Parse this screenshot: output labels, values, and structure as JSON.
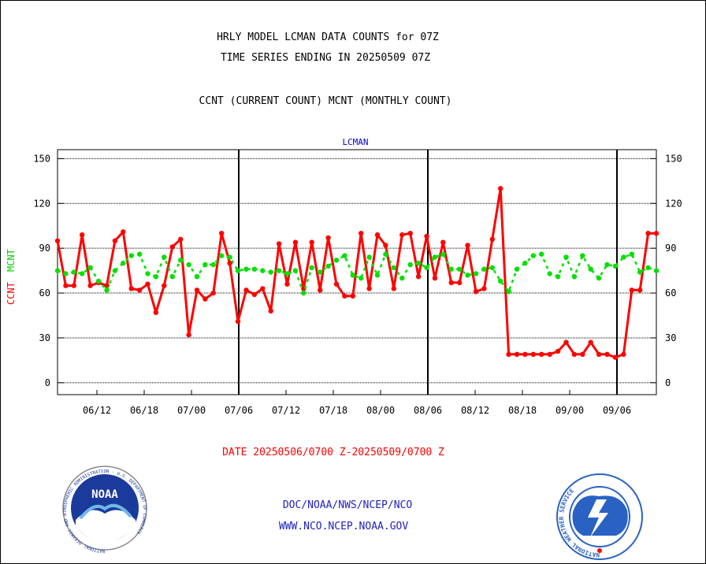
{
  "header": {
    "title_line1": "HRLY MODEL LCMAN DATA COUNTS for 07Z",
    "title_line2": "TIME SERIES ENDING IN 20250509 07Z",
    "subtitle": "CCNT (CURRENT COUNT) MCNT (MONTHLY COUNT)"
  },
  "footer": {
    "date_range": "DATE 20250506/0700 Z-20250509/0700 Z",
    "org_line": "DOC/NOAA/NWS/NCEP/NCO",
    "url_line": "WWW.NCO.NCEP.NOAA.GOV",
    "noaa_logo_text": "NOAA",
    "noaa_seal_text": "NATIONAL OCEANIC AND ATMOSPHERIC ADMINISTRATION · U.S. DEPARTMENT OF COMMERCE",
    "nws_seal_text": "NATIONAL WEATHER SERVICE"
  },
  "colors": {
    "ccnt": "#ff0000",
    "mcnt": "#00e000",
    "chart_title": "#0000cc",
    "footer_text": "#2020c0",
    "date_text": "#ff0000"
  },
  "chart_data": {
    "type": "line",
    "title": "LCMAN",
    "ylabel_ccnt": "CCNT",
    "ylabel_mcnt": "MCNT",
    "ylim": [
      -8,
      156
    ],
    "y_ticks": [
      0,
      30,
      60,
      90,
      120,
      150
    ],
    "x_range": [
      0,
      76
    ],
    "x_ticks": [
      {
        "x": 5,
        "label": "06/12"
      },
      {
        "x": 11,
        "label": "06/18"
      },
      {
        "x": 17,
        "label": "07/00"
      },
      {
        "x": 23,
        "label": "07/06"
      },
      {
        "x": 29,
        "label": "07/12"
      },
      {
        "x": 35,
        "label": "07/18"
      },
      {
        "x": 41,
        "label": "08/00"
      },
      {
        "x": 47,
        "label": "08/06"
      },
      {
        "x": 53,
        "label": "08/12"
      },
      {
        "x": 59,
        "label": "08/18"
      },
      {
        "x": 65,
        "label": "09/00"
      },
      {
        "x": 71,
        "label": "09/06"
      }
    ],
    "day_boundaries": [
      23,
      47,
      71
    ],
    "grid": true,
    "series": [
      {
        "name": "CCNT",
        "color": "#ff0000",
        "values": [
          95,
          65,
          65,
          99,
          65,
          67,
          65,
          95,
          101,
          63,
          62,
          66,
          47,
          65,
          91,
          96,
          32,
          62,
          56,
          60,
          100,
          80,
          41,
          62,
          59,
          63,
          48,
          93,
          66,
          94,
          63,
          94,
          62,
          97,
          66,
          58,
          58,
          100,
          63,
          99,
          92,
          63,
          99,
          100,
          71,
          98,
          70,
          94,
          67,
          67,
          92,
          61,
          63,
          96,
          130,
          19,
          19,
          19,
          19,
          19,
          19,
          21,
          27,
          19,
          19,
          27,
          19,
          19,
          17,
          19,
          62,
          62,
          100,
          100
        ]
      },
      {
        "name": "MCNT",
        "color": "#00e000",
        "values": [
          75,
          73,
          74,
          73,
          77,
          68,
          62,
          75,
          80,
          85,
          86,
          73,
          71,
          84,
          71,
          82,
          79,
          71,
          79,
          79,
          85,
          84,
          75,
          76,
          76,
          75,
          74,
          75,
          73,
          75,
          60,
          77,
          74,
          78,
          82,
          85,
          72,
          70,
          84,
          72,
          86,
          77,
          70,
          79,
          80,
          77,
          84,
          86,
          76,
          76,
          72,
          73,
          76,
          77,
          68,
          61,
          76,
          80,
          85,
          86,
          73,
          71,
          84,
          71,
          85,
          76,
          70,
          79,
          78,
          84,
          86,
          74,
          77,
          75
        ]
      }
    ]
  }
}
